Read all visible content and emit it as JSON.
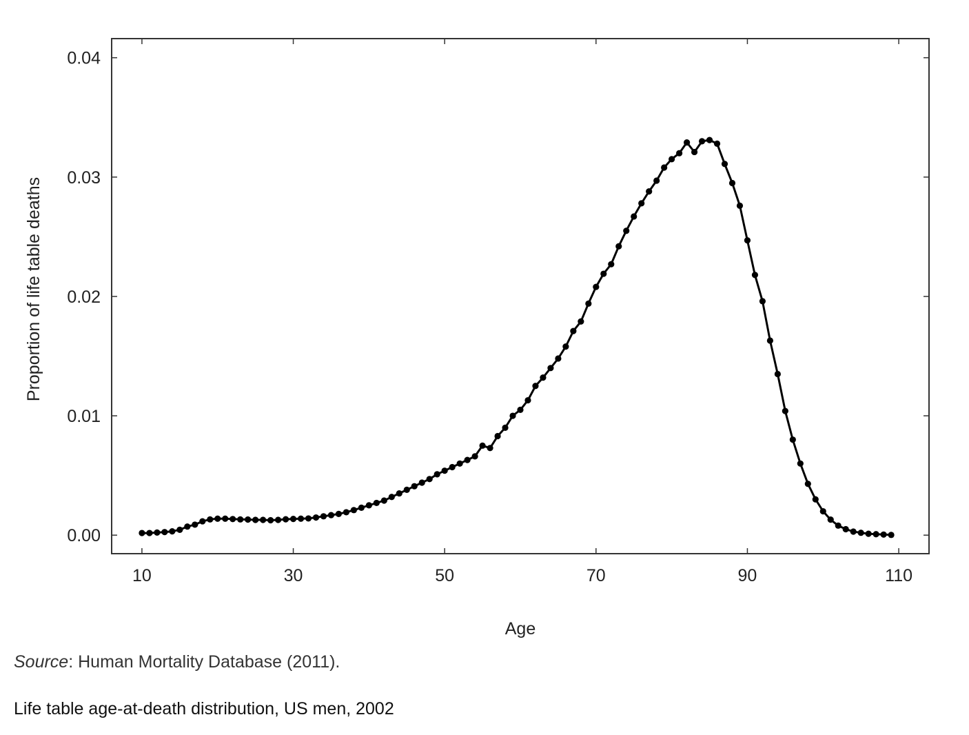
{
  "chart_data": {
    "type": "line",
    "title": "",
    "xlabel": "Age",
    "ylabel": "Proportion of life table deaths",
    "xlim": [
      6,
      114
    ],
    "ylim": [
      -0.00155,
      0.0416
    ],
    "x_ticks": [
      10,
      30,
      50,
      70,
      90,
      110
    ],
    "x_tick_labels": [
      "10",
      "30",
      "50",
      "70",
      "90",
      "110"
    ],
    "y_ticks": [
      0.0,
      0.01,
      0.02,
      0.03,
      0.04
    ],
    "y_tick_labels": [
      "0.00",
      "0.01",
      "0.02",
      "0.03",
      "0.04"
    ],
    "grid": false,
    "marker": "filled-circle",
    "line_color": "#000000",
    "series": [
      {
        "x": [
          10,
          11,
          12,
          13,
          14,
          15,
          16,
          17,
          18,
          19,
          20,
          21,
          22,
          23,
          24,
          25,
          26,
          27,
          28,
          29,
          30,
          31,
          32,
          33,
          34,
          35,
          36,
          37,
          38,
          39,
          40,
          41,
          42,
          43,
          44,
          45,
          46,
          47,
          48,
          49,
          50,
          51,
          52,
          53,
          54,
          55,
          56,
          57,
          58,
          59,
          60,
          61,
          62,
          63,
          64,
          65,
          66,
          67,
          68,
          69,
          70,
          71,
          72,
          73,
          74,
          75,
          76,
          77,
          78,
          79,
          80,
          81,
          82,
          83,
          84,
          85,
          86,
          87,
          88,
          89,
          90,
          91,
          92,
          93,
          94,
          95,
          96,
          97,
          98,
          99,
          100,
          101,
          102,
          103,
          104,
          105,
          106,
          107,
          108,
          109
        ],
        "values": [
          0.00018,
          0.00018,
          0.00022,
          0.00026,
          0.00032,
          0.00045,
          0.00072,
          0.00088,
          0.00116,
          0.00132,
          0.00138,
          0.00138,
          0.00135,
          0.00132,
          0.00131,
          0.00128,
          0.00128,
          0.00125,
          0.00128,
          0.00133,
          0.00136,
          0.00138,
          0.0014,
          0.00148,
          0.00158,
          0.00168,
          0.00178,
          0.00192,
          0.0021,
          0.0023,
          0.0025,
          0.0027,
          0.0029,
          0.0032,
          0.0035,
          0.0038,
          0.0041,
          0.0044,
          0.0047,
          0.0051,
          0.0054,
          0.0057,
          0.006,
          0.0063,
          0.0066,
          0.0075,
          0.0073,
          0.0083,
          0.009,
          0.01,
          0.0105,
          0.0113,
          0.0125,
          0.0132,
          0.014,
          0.0148,
          0.0158,
          0.0171,
          0.0179,
          0.0194,
          0.0208,
          0.0219,
          0.0227,
          0.0242,
          0.0255,
          0.0267,
          0.0278,
          0.0288,
          0.0297,
          0.0308,
          0.0315,
          0.032,
          0.0329,
          0.0321,
          0.033,
          0.0331,
          0.0328,
          0.0311,
          0.0295,
          0.0276,
          0.0247,
          0.0218,
          0.0196,
          0.0163,
          0.0135,
          0.0104,
          0.008,
          0.006,
          0.0043,
          0.003,
          0.002,
          0.0013,
          0.0008,
          0.0005,
          0.0003,
          0.0002,
          0.00012,
          8e-05,
          5e-05,
          2e-05
        ]
      }
    ]
  },
  "footer": {
    "source_label": "Source",
    "source_rest": ": Human Mortality Database (2011).",
    "caption": "Life table age-at-death distribution, US men, 2002"
  }
}
